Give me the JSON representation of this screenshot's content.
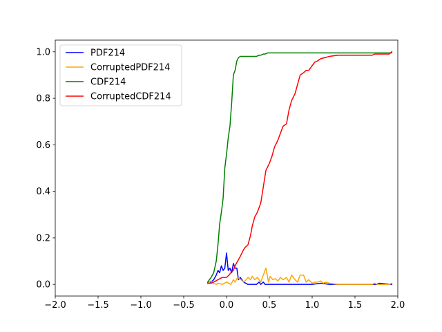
{
  "chart_data": {
    "type": "line",
    "title": "",
    "xlabel": "",
    "ylabel": "",
    "xlim": [
      -2.0,
      2.0
    ],
    "ylim": [
      -0.05,
      1.05
    ],
    "x_ticks": [
      -2.0,
      -1.5,
      -1.0,
      -0.5,
      0.0,
      0.5,
      1.0,
      1.5,
      2.0
    ],
    "x_tick_labels": [
      "−2.0",
      "−1.5",
      "−1.0",
      "−0.5",
      "0.0",
      "0.5",
      "1.0",
      "1.5",
      "2.0"
    ],
    "y_ticks": [
      0.0,
      0.2,
      0.4,
      0.6,
      0.8,
      1.0
    ],
    "y_tick_labels": [
      "0.0",
      "0.2",
      "0.4",
      "0.6",
      "0.8",
      "1.0"
    ],
    "grid": false,
    "legend": {
      "placement": "top-left"
    },
    "series": [
      {
        "name": "PDF214",
        "color": "#0000ff",
        "x": [
          -0.22,
          -0.18,
          -0.15,
          -0.12,
          -0.1,
          -0.08,
          -0.06,
          -0.04,
          -0.02,
          0.0,
          0.02,
          0.04,
          0.06,
          0.08,
          0.1,
          0.12,
          0.14,
          0.16,
          0.18,
          0.2,
          0.25,
          0.3,
          0.35,
          0.38,
          0.4,
          0.43,
          0.45,
          0.48,
          0.5,
          0.6,
          0.7,
          0.8,
          0.9,
          1.0,
          1.1,
          1.2,
          1.5,
          1.75,
          1.78,
          1.93
        ],
        "y": [
          0.01,
          0.01,
          0.02,
          0.04,
          0.06,
          0.05,
          0.08,
          0.06,
          0.07,
          0.135,
          0.06,
          0.07,
          0.05,
          0.09,
          0.07,
          0.07,
          0.02,
          0.03,
          0.02,
          0.01,
          0.0,
          0.0,
          0.0,
          0.01,
          0.0,
          0.01,
          0.0,
          0.0,
          0.0,
          0.0,
          0.0,
          0.0,
          0.0,
          0.0,
          0.005,
          0.0,
          0.0,
          0.0,
          0.005,
          0.0
        ]
      },
      {
        "name": "CorruptedPDF214",
        "color": "#ffa500",
        "x": [
          -0.22,
          -0.18,
          -0.15,
          -0.12,
          -0.1,
          -0.05,
          0.0,
          0.05,
          0.08,
          0.1,
          0.13,
          0.17,
          0.2,
          0.23,
          0.25,
          0.28,
          0.3,
          0.33,
          0.36,
          0.4,
          0.43,
          0.46,
          0.49,
          0.51,
          0.54,
          0.57,
          0.6,
          0.63,
          0.66,
          0.7,
          0.73,
          0.76,
          0.8,
          0.83,
          0.86,
          0.9,
          0.93,
          0.96,
          1.0,
          1.03,
          1.06,
          1.1,
          1.13,
          1.16,
          1.2,
          1.3,
          1.5,
          1.7,
          1.73,
          1.76,
          1.8,
          1.9,
          1.93
        ],
        "y": [
          0.005,
          0.015,
          0.005,
          0.0,
          0.005,
          0.0,
          0.01,
          0.0,
          0.02,
          0.01,
          0.03,
          0.02,
          0.01,
          0.02,
          0.03,
          0.02,
          0.035,
          0.02,
          0.03,
          0.01,
          0.04,
          0.07,
          0.01,
          0.035,
          0.02,
          0.025,
          0.015,
          0.03,
          0.02,
          0.03,
          0.01,
          0.04,
          0.02,
          0.01,
          0.04,
          0.04,
          0.01,
          0.02,
          0.005,
          0.01,
          0.01,
          0.015,
          0.005,
          0.01,
          0.005,
          0.0,
          0.0,
          0.0,
          0.005,
          0.0,
          0.0,
          0.0,
          0.005
        ]
      },
      {
        "name": "CDF214",
        "color": "#008000",
        "x": [
          -0.22,
          -0.2,
          -0.18,
          -0.15,
          -0.12,
          -0.1,
          -0.08,
          -0.06,
          -0.04,
          -0.02,
          0.0,
          0.02,
          0.04,
          0.06,
          0.08,
          0.1,
          0.12,
          0.14,
          0.16,
          0.18,
          0.2,
          0.25,
          0.3,
          0.35,
          0.38,
          0.4,
          0.43,
          0.45,
          0.48,
          0.55,
          1.0,
          1.5,
          1.93
        ],
        "y": [
          0.01,
          0.02,
          0.03,
          0.05,
          0.1,
          0.17,
          0.26,
          0.31,
          0.37,
          0.5,
          0.56,
          0.63,
          0.68,
          0.78,
          0.9,
          0.92,
          0.96,
          0.975,
          0.98,
          0.98,
          0.98,
          0.98,
          0.98,
          0.98,
          0.985,
          0.985,
          0.99,
          0.99,
          0.995,
          0.995,
          0.995,
          0.995,
          0.995
        ]
      },
      {
        "name": "CorruptedCDF214",
        "color": "#ff0000",
        "x": [
          -0.22,
          -0.18,
          -0.15,
          -0.1,
          -0.05,
          0.0,
          0.03,
          0.05,
          0.08,
          0.1,
          0.13,
          0.16,
          0.2,
          0.22,
          0.25,
          0.28,
          0.3,
          0.33,
          0.36,
          0.4,
          0.43,
          0.46,
          0.5,
          0.53,
          0.56,
          0.6,
          0.63,
          0.66,
          0.7,
          0.73,
          0.76,
          0.8,
          0.83,
          0.86,
          0.9,
          0.93,
          0.96,
          1.0,
          1.03,
          1.06,
          1.1,
          1.15,
          1.2,
          1.3,
          1.5,
          1.7,
          1.73,
          1.76,
          1.8,
          1.9,
          1.93
        ],
        "y": [
          0.005,
          0.005,
          0.01,
          0.02,
          0.03,
          0.03,
          0.04,
          0.05,
          0.06,
          0.08,
          0.1,
          0.12,
          0.15,
          0.16,
          0.17,
          0.21,
          0.25,
          0.29,
          0.31,
          0.35,
          0.42,
          0.49,
          0.52,
          0.55,
          0.59,
          0.62,
          0.65,
          0.68,
          0.69,
          0.75,
          0.79,
          0.82,
          0.86,
          0.9,
          0.91,
          0.92,
          0.92,
          0.94,
          0.955,
          0.96,
          0.97,
          0.975,
          0.98,
          0.985,
          0.985,
          0.985,
          0.99,
          0.99,
          0.99,
          0.99,
          1.0
        ]
      }
    ]
  }
}
